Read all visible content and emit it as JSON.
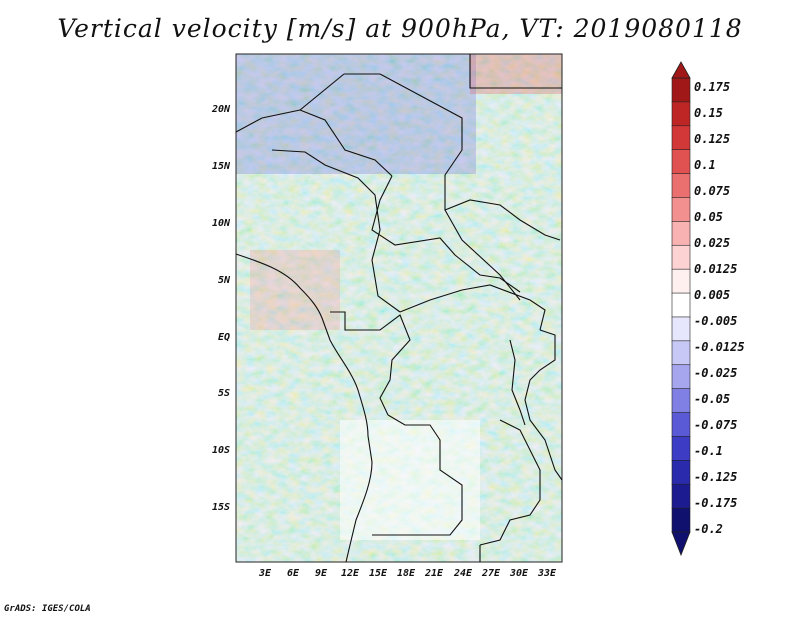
{
  "title": "Vertical velocity [m/s] at 900hPa, VT: 2019080118",
  "map": {
    "lat_labels": [
      "20N",
      "15N",
      "10N",
      "5N",
      "EQ",
      "5S",
      "10S",
      "15S"
    ],
    "lon_labels": [
      "3E",
      "6E",
      "9E",
      "12E",
      "15E",
      "18E",
      "21E",
      "24E",
      "27E",
      "30E",
      "33E"
    ]
  },
  "colorbar": {
    "labels": [
      "0.175",
      "0.15",
      "0.125",
      "0.1",
      "0.075",
      "0.05",
      "0.025",
      "0.0125",
      "0.005",
      "-0.005",
      "-0.0125",
      "-0.025",
      "-0.05",
      "-0.075",
      "-0.1",
      "-0.125",
      "-0.175",
      "-0.2"
    ],
    "colors": [
      "#a01818",
      "#be2626",
      "#d23838",
      "#e05252",
      "#ea7070",
      "#f29090",
      "#f8b2b2",
      "#fcd2d2",
      "#fff0f0",
      "#ffffff",
      "#e6e6fc",
      "#c8c8f6",
      "#a6a6ee",
      "#8080e4",
      "#5a5ad6",
      "#3c3cc4",
      "#2a2aac",
      "#1c1c90",
      "#10106e"
    ]
  },
  "credit": "GrADS: IGES/COLA"
}
